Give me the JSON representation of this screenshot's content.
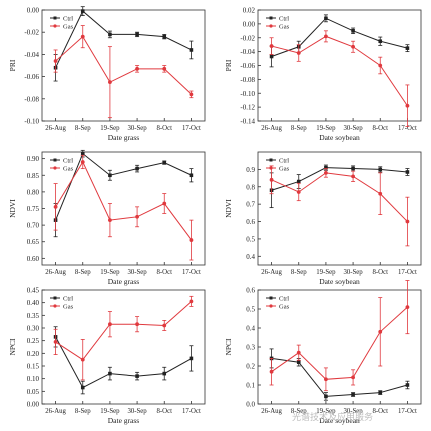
{
  "chart_data": [
    {
      "type": "line",
      "xlabel": "Date grass",
      "ylabel": "PRI",
      "categories": [
        "26-Aug",
        "8-Sep",
        "19-Sep",
        "30-Sep",
        "8-Oct",
        "17-Oct"
      ],
      "ylim": [
        -0.1,
        0.0
      ],
      "yticks": [
        "0.00",
        "-0.02",
        "-0.04",
        "-0.06",
        "-0.08",
        "-0.10"
      ],
      "legend": "top-left",
      "series": [
        {
          "name": "Ctrl",
          "color": "#222222",
          "values": [
            -0.052,
            -0.001,
            -0.022,
            -0.022,
            -0.024,
            -0.036
          ],
          "errors": [
            0.012,
            0.004,
            0.003,
            0.002,
            0.002,
            0.008
          ]
        },
        {
          "name": "Gas",
          "color": "#e0393e",
          "values": [
            -0.046,
            -0.024,
            -0.065,
            -0.053,
            -0.053,
            -0.076
          ],
          "errors": [
            0.01,
            0.01,
            0.032,
            0.003,
            0.003,
            0.003
          ]
        }
      ]
    },
    {
      "type": "line",
      "xlabel": "Date soybean",
      "ylabel": "PRI",
      "categories": [
        "26-Aug",
        "8-Sep",
        "19-Sep",
        "30-Sep",
        "8-Oct",
        "17-Oct"
      ],
      "ylim": [
        -0.14,
        0.02
      ],
      "yticks": [
        "0.02",
        "0.00",
        "-0.02",
        "-0.04",
        "-0.06",
        "-0.08",
        "-0.10",
        "-0.12",
        "-0.14"
      ],
      "legend": "top-left",
      "series": [
        {
          "name": "Ctrl",
          "color": "#222222",
          "values": [
            -0.047,
            -0.033,
            0.008,
            -0.01,
            -0.025,
            -0.035
          ],
          "errors": [
            0.015,
            0.008,
            0.005,
            0.004,
            0.006,
            0.005
          ]
        },
        {
          "name": "Gas",
          "color": "#e0393e",
          "values": [
            -0.032,
            -0.042,
            -0.018,
            -0.033,
            -0.06,
            -0.118
          ],
          "errors": [
            0.012,
            0.012,
            0.008,
            0.008,
            0.012,
            0.03
          ]
        }
      ]
    },
    {
      "type": "line",
      "xlabel": "Date grass",
      "ylabel": "NDVI",
      "categories": [
        "26-Aug",
        "8-Sep",
        "19-Sep",
        "30-Sep",
        "8-Oct",
        "17-Oct"
      ],
      "ylim": [
        0.58,
        0.92
      ],
      "yticks": [
        "0.90",
        "0.85",
        "0.80",
        "0.75",
        "0.70",
        "0.65",
        "0.60"
      ],
      "legend": "top-left",
      "series": [
        {
          "name": "Ctrl",
          "color": "#222222",
          "values": [
            0.715,
            0.915,
            0.85,
            0.87,
            0.888,
            0.85
          ],
          "errors": [
            0.05,
            0.01,
            0.015,
            0.01,
            0.005,
            0.02
          ]
        },
        {
          "name": "Gas",
          "color": "#e0393e",
          "values": [
            0.755,
            0.89,
            0.715,
            0.725,
            0.765,
            0.655
          ],
          "errors": [
            0.07,
            0.02,
            0.05,
            0.03,
            0.03,
            0.06
          ]
        }
      ]
    },
    {
      "type": "line",
      "xlabel": "Date soybean",
      "ylabel": "NDVI",
      "categories": [
        "26-Aug",
        "8-Sep",
        "19-Sep",
        "30-Sep",
        "8-Oct",
        "17-Oct"
      ],
      "ylim": [
        0.35,
        1.0
      ],
      "yticks": [
        "0.9",
        "0.8",
        "0.7",
        "0.6",
        "0.5",
        "0.4"
      ],
      "legend": "top-left",
      "series": [
        {
          "name": "Ctrl",
          "color": "#222222",
          "values": [
            0.78,
            0.83,
            0.91,
            0.905,
            0.9,
            0.885
          ],
          "errors": [
            0.1,
            0.04,
            0.015,
            0.015,
            0.015,
            0.02
          ]
        },
        {
          "name": "Gas",
          "color": "#e0393e",
          "values": [
            0.84,
            0.77,
            0.88,
            0.86,
            0.76,
            0.6
          ],
          "errors": [
            0.08,
            0.05,
            0.025,
            0.03,
            0.12,
            0.14
          ]
        }
      ]
    },
    {
      "type": "line",
      "xlabel": "Date grass",
      "ylabel": "NPCI",
      "categories": [
        "26-Aug",
        "8-Sep",
        "19-Sep",
        "30-Sep",
        "8-Oct",
        "17-Oct"
      ],
      "ylim": [
        0.0,
        0.45
      ],
      "yticks": [
        "0.45",
        "0.40",
        "0.35",
        "0.30",
        "0.25",
        "0.20",
        "0.15",
        "0.10",
        "0.05",
        "0.00"
      ],
      "legend": "top-left",
      "series": [
        {
          "name": "Ctrl",
          "color": "#222222",
          "values": [
            0.265,
            0.065,
            0.12,
            0.11,
            0.12,
            0.18
          ],
          "errors": [
            0.04,
            0.025,
            0.025,
            0.015,
            0.025,
            0.05
          ]
        },
        {
          "name": "Gas",
          "color": "#e0393e",
          "values": [
            0.245,
            0.175,
            0.315,
            0.315,
            0.31,
            0.405
          ],
          "errors": [
            0.05,
            0.08,
            0.05,
            0.03,
            0.02,
            0.02
          ]
        }
      ]
    },
    {
      "type": "line",
      "xlabel": "Date soybean",
      "ylabel": "NPCI",
      "categories": [
        "26-Aug",
        "8-Sep",
        "19-Sep",
        "30-Sep",
        "8-Oct",
        "17-Oct"
      ],
      "ylim": [
        0.0,
        0.6
      ],
      "yticks": [
        "0.6",
        "0.5",
        "0.4",
        "0.3",
        "0.2",
        "0.1",
        "0.0"
      ],
      "legend": "top-left",
      "series": [
        {
          "name": "Ctrl",
          "color": "#222222",
          "values": [
            0.24,
            0.22,
            0.04,
            0.05,
            0.06,
            0.1
          ],
          "errors": [
            0.05,
            0.02,
            0.02,
            0.01,
            0.01,
            0.02
          ]
        },
        {
          "name": "Gas",
          "color": "#e0393e",
          "values": [
            0.17,
            0.27,
            0.13,
            0.14,
            0.38,
            0.51
          ],
          "errors": [
            0.07,
            0.04,
            0.06,
            0.04,
            0.18,
            0.14
          ]
        }
      ]
    }
  ],
  "watermark": "光谱技术及应用服务"
}
